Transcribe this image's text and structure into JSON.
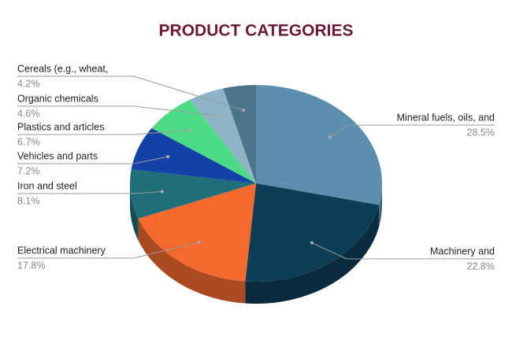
{
  "chart_data": {
    "type": "pie",
    "title": "PRODUCT CATEGORIES",
    "categories": [
      "Mineral fuels, oils, and",
      "Machinery and",
      "Electrical machinery",
      "Iron and steel",
      "Vehicles and parts",
      "Plastics and articles",
      "Organic chemicals",
      "Cereals (e.g., wheat,"
    ],
    "values": [
      28.5,
      22.8,
      17.8,
      8.1,
      7.2,
      6.7,
      4.6,
      4.2
    ],
    "value_labels": [
      "28.5%",
      "22.8%",
      "17.8%",
      "8.1%",
      "7.2%",
      "6.7%",
      "4.6%",
      "4.2%"
    ],
    "colors": [
      "#5b8fad",
      "#0e3d57",
      "#f4692e",
      "#1f6e7a",
      "#1242a8",
      "#4edb85",
      "#8fb3c7",
      "#4a7589"
    ]
  }
}
